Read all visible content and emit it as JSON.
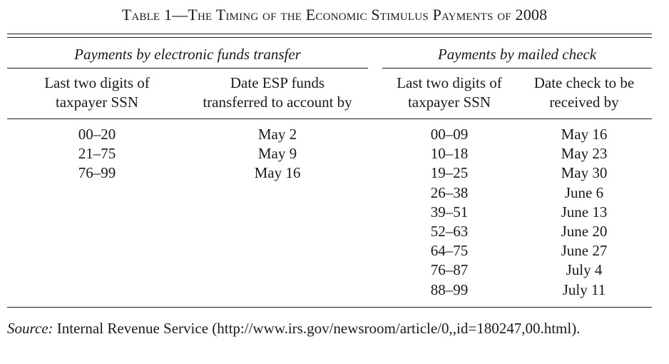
{
  "table": {
    "caption": "Table 1—The Timing of the Economic Stimulus Payments of 2008",
    "groups": {
      "eft": "Payments by electronic funds transfer",
      "check": "Payments by mailed check"
    },
    "headers": {
      "eft_ssn_line1": "Last two digits of",
      "eft_ssn_line2": "taxpayer SSN",
      "eft_date_line1": "Date ESP funds",
      "eft_date_line2": "transferred to account by",
      "check_ssn_line1": "Last two digits of",
      "check_ssn_line2": "taxpayer SSN",
      "check_date_line1": "Date check to be",
      "check_date_line2": "received by"
    },
    "eft_ssn": [
      "00–20",
      "21–75",
      "76–99"
    ],
    "eft_dates": [
      "May 2",
      "May 9",
      "May 16"
    ],
    "check_ssn": [
      "00–09",
      "10–18",
      "19–25",
      "26–38",
      "39–51",
      "52–63",
      "64–75",
      "76–87",
      "88–99"
    ],
    "check_dates": [
      "May 16",
      "May 23",
      "May 30",
      "June 6",
      "June 13",
      "June 20",
      "June 27",
      "July 4",
      "July 11"
    ]
  },
  "source": {
    "label": "Source:",
    "text": "Internal Revenue Service (http://www.irs.gov/newsroom/article/0,,id=180247,00.html)."
  }
}
